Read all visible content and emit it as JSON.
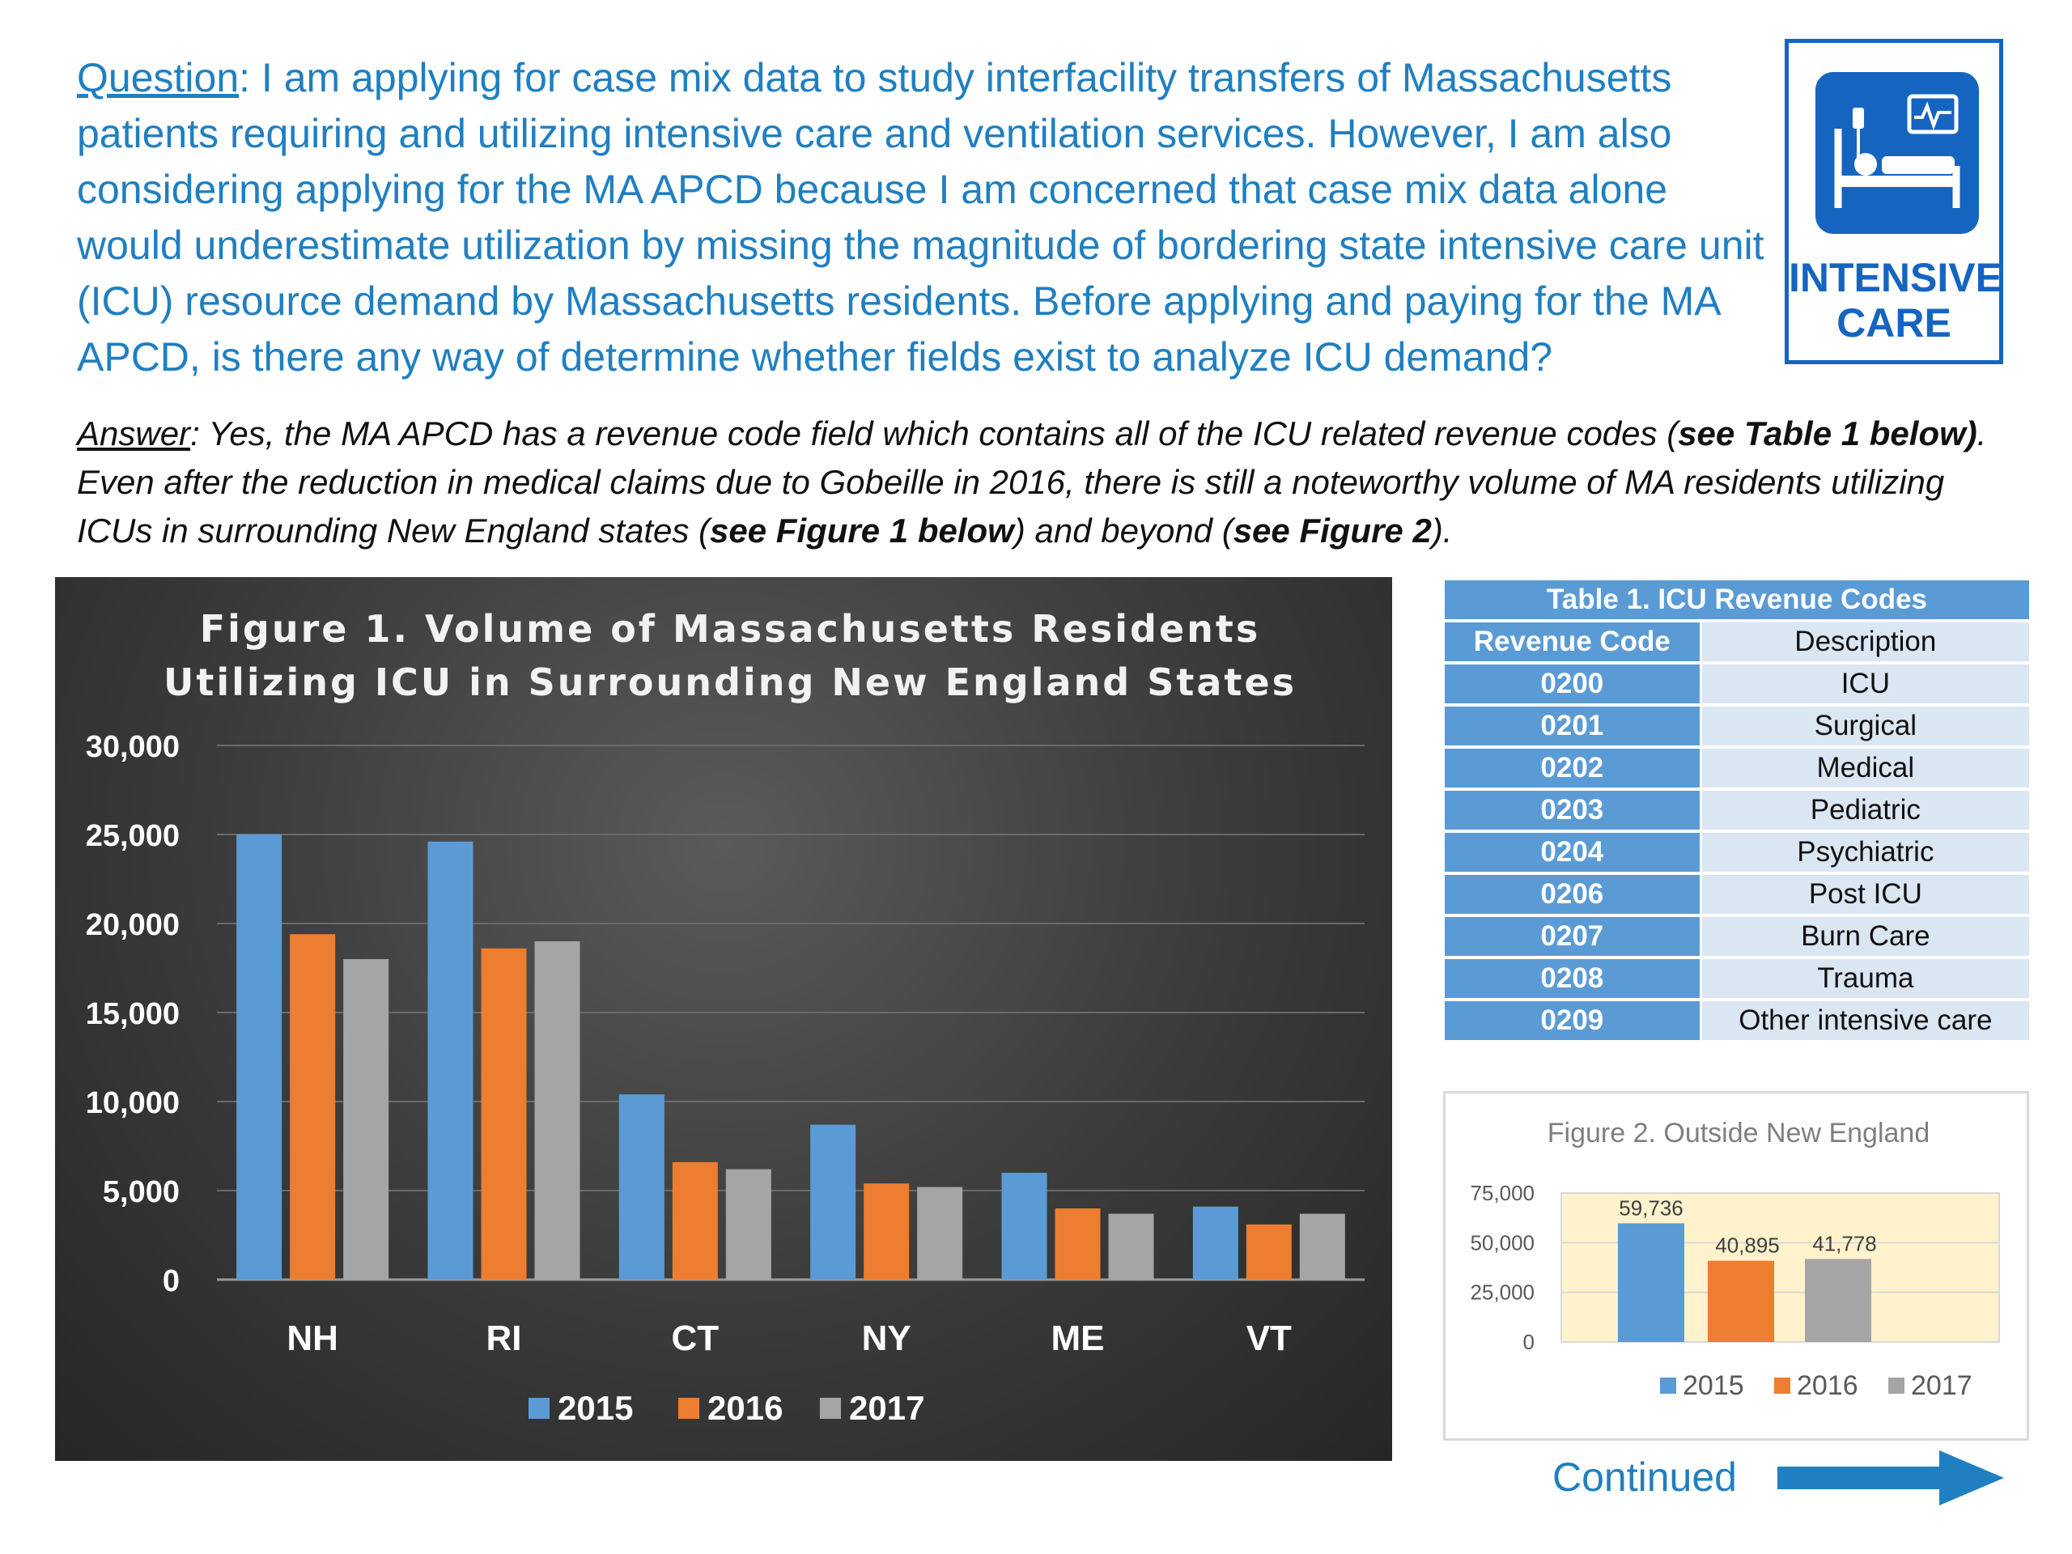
{
  "question": {
    "lead": "Question",
    "text": ": I am applying for case mix data to study interfacility transfers of Massachusetts patients requiring and utilizing intensive care and ventilation services. However, I am also considering applying for the MA APCD because I am concerned that case mix data alone would underestimate utilization by missing the magnitude of bordering state intensive care unit (ICU) resource demand by Massachusetts residents. Before applying and paying for the MA APCD, is there any way of determine whether fields exist to analyze ICU demand?"
  },
  "answer": {
    "lead": "Answer",
    "t1": ": Yes, the MA APCD has a revenue code field which contains all of the ICU related revenue codes (",
    "b1": "see Table 1 below)",
    "t2": ". Even after the reduction in medical claims due to Gobeille in 2016, there is still a noteworthy volume of MA residents utilizing ICUs in surrounding New England states (",
    "b2": "see Figure 1 below",
    "t3": ") and beyond (",
    "b3": "see Figure 2",
    "t4": ")."
  },
  "badge": {
    "line1": "INTENSIVE",
    "line2": "CARE",
    "icon": "hospital-bed-monitor-icon",
    "color": "#1565c0"
  },
  "table1": {
    "title": "Table 1. ICU Revenue Codes",
    "headers": [
      "Revenue Code",
      "Description"
    ],
    "rows": [
      [
        "0200",
        "ICU"
      ],
      [
        "0201",
        "Surgical"
      ],
      [
        "0202",
        "Medical"
      ],
      [
        "0203",
        "Pediatric"
      ],
      [
        "0204",
        "Psychiatric"
      ],
      [
        "0206",
        "Post ICU"
      ],
      [
        "0207",
        "Burn Care"
      ],
      [
        "0208",
        "Trauma"
      ],
      [
        "0209",
        "Other intensive care"
      ]
    ]
  },
  "chart_data": [
    {
      "type": "bar",
      "title": [
        "Figure 1. Volume of Massachusetts Residents",
        "Utilizing ICU in Surrounding New England States"
      ],
      "categories": [
        "NH",
        "RI",
        "CT",
        "NY",
        "ME",
        "VT"
      ],
      "series": [
        {
          "name": "2015",
          "color": "#5b9bd5",
          "values": [
            25000,
            24600,
            10400,
            8700,
            6000,
            4100
          ]
        },
        {
          "name": "2016",
          "color": "#ed7d31",
          "values": [
            19400,
            18600,
            6600,
            5400,
            4000,
            3100
          ]
        },
        {
          "name": "2017",
          "color": "#a5a5a5",
          "values": [
            18000,
            19000,
            6200,
            5200,
            3700,
            3700
          ]
        }
      ],
      "ylim": [
        0,
        30000
      ],
      "yticks": [
        "0",
        "5,000",
        "10,000",
        "15,000",
        "20,000",
        "25,000",
        "30,000"
      ],
      "grid": true,
      "legend": "bottom"
    },
    {
      "type": "bar",
      "title": "Figure 2. Outside New England",
      "categories": [
        "2015",
        "2016",
        "2017"
      ],
      "values": [
        59736,
        40895,
        41778
      ],
      "data_labels": [
        "59,736",
        "40,895",
        "41,778"
      ],
      "colors": [
        "#5b9bd5",
        "#ed7d31",
        "#a5a5a5"
      ],
      "ylim": [
        0,
        75000
      ],
      "yticks": [
        "0",
        "25,000",
        "50,000",
        "75,000"
      ],
      "plot_bg": "#fff2cc",
      "grid": true,
      "legend": "bottom"
    }
  ],
  "continued": "Continued"
}
